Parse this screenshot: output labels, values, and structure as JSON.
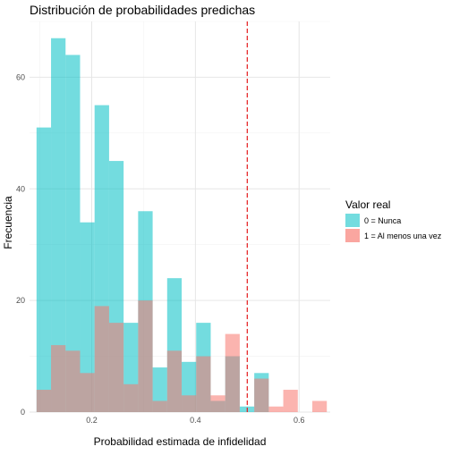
{
  "chart_data": {
    "type": "histogram",
    "title": "Distribución de probabilidades predichas",
    "xlabel": "Probabilidad estimada de infidelidad",
    "ylabel": "Frecuencia",
    "xlim": [
      0.08,
      0.66
    ],
    "ylim": [
      0,
      70
    ],
    "x_ticks": [
      0.2,
      0.4,
      0.6
    ],
    "x_tick_labels": [
      "0.2",
      "0.4",
      "0.6"
    ],
    "y_ticks": [
      0,
      20,
      40,
      60
    ],
    "y_tick_labels": [
      "0",
      "20",
      "40",
      "60"
    ],
    "grid": true,
    "bin_edges": [
      0.0935,
      0.1215,
      0.1495,
      0.1775,
      0.2055,
      0.2335,
      0.2615,
      0.2895,
      0.3175,
      0.3455,
      0.3735,
      0.4015,
      0.4295,
      0.4575,
      0.4855,
      0.5135,
      0.5415,
      0.5695,
      0.5975,
      0.6255,
      0.6535
    ],
    "series": [
      {
        "name": "0 = Nunca",
        "color": "#00BFC4",
        "values": [
          51,
          67,
          64,
          34,
          55,
          45,
          16,
          36,
          8,
          24,
          9,
          16,
          2,
          10,
          1,
          7,
          0,
          0,
          0,
          0
        ]
      },
      {
        "name": "1 = Al menos una vez",
        "color": "#F8766D",
        "values": [
          4,
          12,
          11,
          7,
          19,
          16,
          5,
          20,
          2,
          11,
          3,
          10,
          3,
          14,
          0,
          6,
          1,
          4,
          0,
          2
        ]
      }
    ],
    "reference_line": {
      "x": 0.5,
      "color": "#E41A1C",
      "style": "dashed"
    },
    "legend": {
      "title": "Valor real",
      "position": "right"
    }
  }
}
